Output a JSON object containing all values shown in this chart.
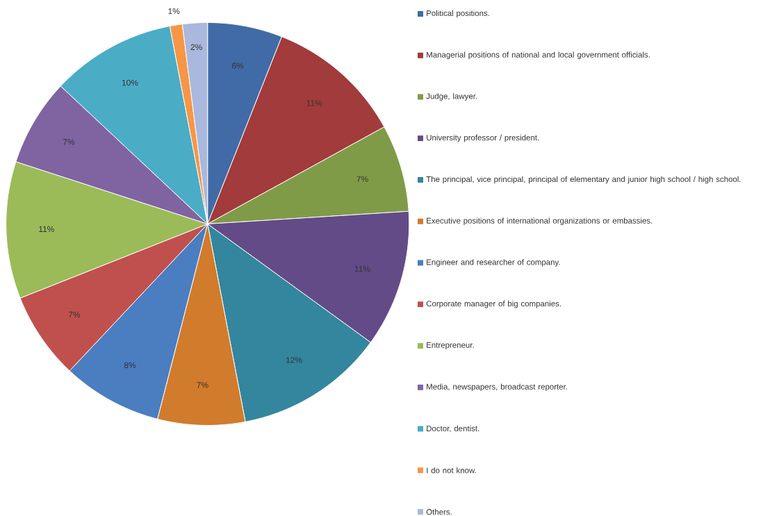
{
  "chart_data": {
    "type": "pie",
    "categories": [
      "Political positions.",
      "Managerial positions of national and local government officials.",
      "Judge, lawyer.",
      "University professor / president.",
      "The principal, vice principal, principal of elementary and junior high school / high school.",
      "Executive positions of international organizations or embassies.",
      "Engineer and researcher of company.",
      "Corporate manager of big companies.",
      "Entrepreneur.",
      "Media, newspapers, broadcast reporter.",
      "Doctor, dentist.",
      "I do not know.",
      "Others."
    ],
    "values": [
      6,
      11,
      7,
      11,
      12,
      7,
      8,
      7,
      11,
      7,
      10,
      1,
      2
    ],
    "value_labels": [
      "6%",
      "11%",
      "7%",
      "11%",
      "12%",
      "7%",
      "8%",
      "7%",
      "11%",
      "7%",
      "10%",
      "1%",
      "2%"
    ],
    "colors": [
      "#416ba6",
      "#a23b3b",
      "#809b48",
      "#634b88",
      "#33869e",
      "#d17b2c",
      "#4a7ec0",
      "#c0504d",
      "#9bbb59",
      "#8064a2",
      "#4bacc6",
      "#f79646",
      "#a9b8dc"
    ],
    "legend": "right"
  }
}
